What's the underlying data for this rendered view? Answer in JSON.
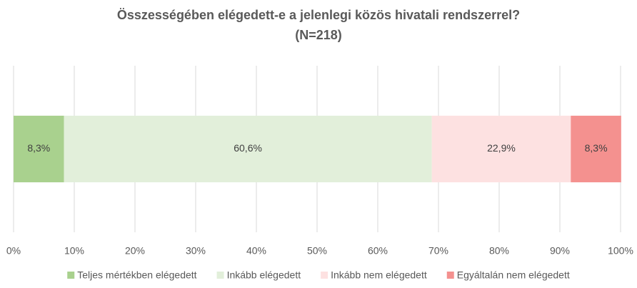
{
  "chart_data": {
    "type": "stacked-barh",
    "title": "Összességében elégedett-e a jelenlegi közös hivatali rendszerrel?",
    "subtitle": "(N=218)",
    "categories": [
      null
    ],
    "series": [
      {
        "name": "Teljes mértékben elégedett",
        "color": "#a9d18e",
        "values": [
          8.3
        ],
        "value_labels": [
          "8,3%"
        ]
      },
      {
        "name": "Inkább elégedett",
        "color": "#e2efda",
        "values": [
          60.6
        ],
        "value_labels": [
          "60,6%"
        ]
      },
      {
        "name": "Inkább nem elégedett",
        "color": "#fde1e1",
        "values": [
          22.9
        ],
        "value_labels": [
          "22,9%"
        ]
      },
      {
        "name": "Egyáltalán nem elégedett",
        "color": "#f4918f",
        "values": [
          8.3
        ],
        "value_labels": [
          "8,3%"
        ]
      }
    ],
    "xlim": [
      0,
      100
    ],
    "xticks": [
      {
        "value": 0,
        "label": "0%"
      },
      {
        "value": 10,
        "label": "10%"
      },
      {
        "value": 20,
        "label": "20%"
      },
      {
        "value": 30,
        "label": "30%"
      },
      {
        "value": 40,
        "label": "40%"
      },
      {
        "value": 50,
        "label": "50%"
      },
      {
        "value": 60,
        "label": "60%"
      },
      {
        "value": 70,
        "label": "70%"
      },
      {
        "value": 80,
        "label": "80%"
      },
      {
        "value": 90,
        "label": "90%"
      },
      {
        "value": 100,
        "label": "100%"
      }
    ],
    "grid": true,
    "legend": "bottom"
  }
}
